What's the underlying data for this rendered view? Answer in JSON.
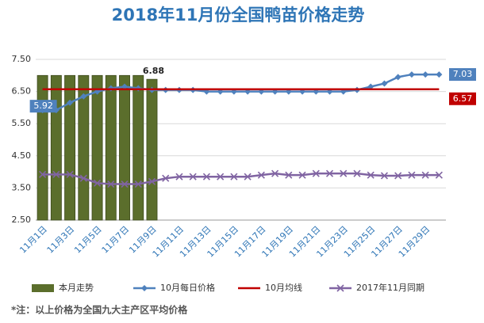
{
  "chart_data": {
    "type": "bar-line",
    "title": "2018年11月份全国鸭苗价格走势",
    "note": "*注：以上价格为全国九大主产区平均价格",
    "categories": [
      "11月1日",
      null,
      "11月3日",
      null,
      "11月5日",
      null,
      "11月7日",
      null,
      "11月9日",
      null,
      "11月11日",
      null,
      "11月13日",
      null,
      "11月15日",
      null,
      "11月17日",
      null,
      "11月19日",
      null,
      "11月21日",
      null,
      "11月23日",
      null,
      "11月25日",
      null,
      "11月27日",
      null,
      "11月29日",
      null
    ],
    "ylim": [
      2.5,
      7.5
    ],
    "yticks": [
      {
        "value": 2.5,
        "label": "2.50"
      },
      {
        "value": 3.5,
        "label": "3.50"
      },
      {
        "value": 4.5,
        "label": "4.50"
      },
      {
        "value": 5.5,
        "label": "5.50"
      },
      {
        "value": 6.5,
        "label": "6.50"
      },
      {
        "value": 7.5,
        "label": "7.50"
      }
    ],
    "grid": true,
    "legend": "bottom",
    "series": [
      {
        "name": "本月走势",
        "type": "bar",
        "color": "#5b6e2c",
        "values": [
          7.0,
          7.0,
          7.0,
          7.0,
          7.0,
          7.0,
          7.0,
          7.0,
          6.88,
          null,
          null,
          null,
          null,
          null,
          null,
          null,
          null,
          null,
          null,
          null,
          null,
          null,
          null,
          null,
          null,
          null,
          null,
          null,
          null,
          null
        ],
        "value_labels": [
          null,
          null,
          null,
          null,
          null,
          null,
          null,
          null,
          "6.88",
          null,
          null,
          null,
          null,
          null,
          null,
          null,
          null,
          null,
          null,
          null,
          null,
          null,
          null,
          null,
          null,
          null,
          null,
          null,
          null,
          null
        ]
      },
      {
        "name": "10月每日价格",
        "type": "line",
        "marker": "diamond",
        "color": "#4f81bd",
        "values": [
          5.92,
          5.92,
          6.15,
          6.35,
          6.5,
          6.6,
          6.65,
          6.6,
          6.55,
          6.55,
          6.55,
          6.55,
          6.5,
          6.5,
          6.5,
          6.5,
          6.5,
          6.5,
          6.5,
          6.5,
          6.5,
          6.5,
          6.5,
          6.55,
          6.65,
          6.75,
          6.95,
          7.03,
          7.03,
          7.03
        ],
        "value_labels": [
          "5.92",
          null,
          null,
          null,
          null,
          null,
          null,
          null,
          null,
          null,
          null,
          null,
          null,
          null,
          null,
          null,
          null,
          null,
          null,
          null,
          null,
          null,
          null,
          null,
          null,
          null,
          null,
          null,
          null,
          "7.03"
        ]
      },
      {
        "name": "10月均线",
        "type": "line",
        "marker": "none",
        "color": "#c00000",
        "values": [
          6.57,
          6.57,
          6.57,
          6.57,
          6.57,
          6.57,
          6.57,
          6.57,
          6.57,
          6.57,
          6.57,
          6.57,
          6.57,
          6.57,
          6.57,
          6.57,
          6.57,
          6.57,
          6.57,
          6.57,
          6.57,
          6.57,
          6.57,
          6.57,
          6.57,
          6.57,
          6.57,
          6.57,
          6.57,
          6.57
        ],
        "value_labels": [
          null,
          null,
          null,
          null,
          null,
          null,
          null,
          null,
          null,
          null,
          null,
          null,
          null,
          null,
          null,
          null,
          null,
          null,
          null,
          null,
          null,
          null,
          null,
          null,
          null,
          null,
          null,
          null,
          null,
          "6.57"
        ]
      },
      {
        "name": "2017年11月同期",
        "type": "line",
        "marker": "x",
        "color": "#8064a2",
        "values": [
          3.92,
          3.92,
          3.92,
          3.8,
          3.65,
          3.62,
          3.62,
          3.62,
          3.7,
          3.8,
          3.85,
          3.85,
          3.85,
          3.85,
          3.85,
          3.85,
          3.9,
          3.95,
          3.9,
          3.9,
          3.95,
          3.95,
          3.95,
          3.95,
          3.9,
          3.88,
          3.88,
          3.9,
          3.9,
          3.9
        ]
      }
    ]
  }
}
